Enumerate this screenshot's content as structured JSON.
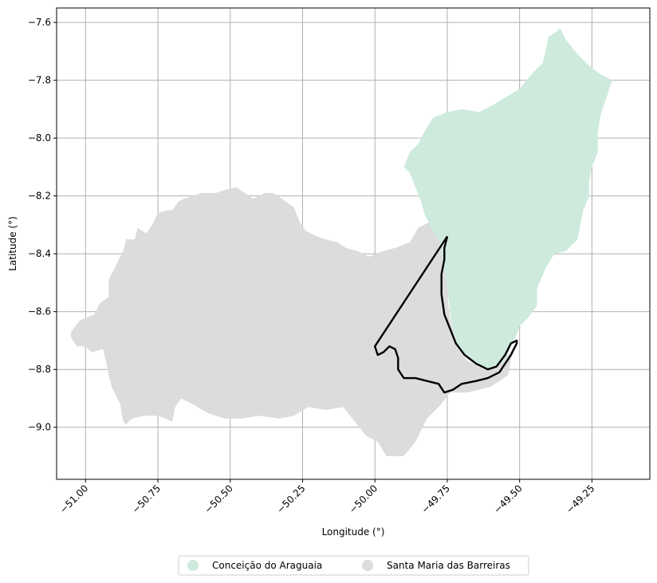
{
  "chart_data": {
    "type": "map",
    "xlabel": "Longitude (°)",
    "ylabel": "Latitude (°)",
    "xlim": [
      -51.1,
      -49.05
    ],
    "ylim": [
      -9.18,
      -7.55
    ],
    "grid": true,
    "x_ticks": [
      {
        "value": -51.0,
        "label": "−51.00"
      },
      {
        "value": -50.75,
        "label": "−50.75"
      },
      {
        "value": -50.5,
        "label": "−50.50"
      },
      {
        "value": -50.25,
        "label": "−50.25"
      },
      {
        "value": -50.0,
        "label": "−50.00"
      },
      {
        "value": -49.75,
        "label": "−49.75"
      },
      {
        "value": -49.5,
        "label": "−49.50"
      },
      {
        "value": -49.25,
        "label": "−49.25"
      }
    ],
    "y_ticks": [
      {
        "value": -7.6,
        "label": "−7.6"
      },
      {
        "value": -7.8,
        "label": "−7.8"
      },
      {
        "value": -8.0,
        "label": "−8.0"
      },
      {
        "value": -8.2,
        "label": "−8.2"
      },
      {
        "value": -8.4,
        "label": "−8.4"
      },
      {
        "value": -8.6,
        "label": "−8.6"
      },
      {
        "value": -8.8,
        "label": "−8.8"
      },
      {
        "value": -9.0,
        "label": "−9.0"
      }
    ],
    "legend_position": "bottom-center",
    "regions": [
      {
        "name": "Santa Maria das Barreiras",
        "color": "#dcdcdc",
        "coords": [
          [
            -51.05,
            -8.67
          ],
          [
            -51.02,
            -8.63
          ],
          [
            -50.97,
            -8.61
          ],
          [
            -50.95,
            -8.57
          ],
          [
            -50.92,
            -8.55
          ],
          [
            -50.92,
            -8.49
          ],
          [
            -50.89,
            -8.43
          ],
          [
            -50.87,
            -8.39
          ],
          [
            -50.86,
            -8.35
          ],
          [
            -50.83,
            -8.35
          ],
          [
            -50.82,
            -8.31
          ],
          [
            -50.79,
            -8.33
          ],
          [
            -50.77,
            -8.3
          ],
          [
            -50.75,
            -8.26
          ],
          [
            -50.72,
            -8.25
          ],
          [
            -50.7,
            -8.25
          ],
          [
            -50.68,
            -8.22
          ],
          [
            -50.66,
            -8.21
          ],
          [
            -50.63,
            -8.2
          ],
          [
            -50.6,
            -8.19
          ],
          [
            -50.58,
            -8.19
          ],
          [
            -50.55,
            -8.19
          ],
          [
            -50.52,
            -8.18
          ],
          [
            -50.48,
            -8.17
          ],
          [
            -50.45,
            -8.19
          ],
          [
            -50.42,
            -8.21
          ],
          [
            -50.38,
            -8.19
          ],
          [
            -50.35,
            -8.19
          ],
          [
            -50.32,
            -8.21
          ],
          [
            -50.28,
            -8.24
          ],
          [
            -50.26,
            -8.29
          ],
          [
            -50.24,
            -8.32
          ],
          [
            -50.2,
            -8.34
          ],
          [
            -50.17,
            -8.35
          ],
          [
            -50.13,
            -8.36
          ],
          [
            -50.1,
            -8.38
          ],
          [
            -50.06,
            -8.39
          ],
          [
            -50.02,
            -8.41
          ],
          [
            -49.97,
            -8.39
          ],
          [
            -49.93,
            -8.38
          ],
          [
            -49.88,
            -8.36
          ],
          [
            -49.85,
            -8.31
          ],
          [
            -49.81,
            -8.29
          ],
          [
            -49.79,
            -8.28
          ],
          [
            -49.74,
            -8.28
          ],
          [
            -49.7,
            -8.28
          ],
          [
            -49.67,
            -8.28
          ],
          [
            -49.67,
            -8.5
          ],
          [
            -49.72,
            -8.52
          ],
          [
            -49.75,
            -8.55
          ],
          [
            -49.74,
            -8.62
          ],
          [
            -49.72,
            -8.72
          ],
          [
            -49.68,
            -8.77
          ],
          [
            -49.62,
            -8.8
          ],
          [
            -49.58,
            -8.79
          ],
          [
            -49.53,
            -8.74
          ],
          [
            -49.52,
            -8.71
          ],
          [
            -49.54,
            -8.82
          ],
          [
            -49.6,
            -8.86
          ],
          [
            -49.68,
            -8.88
          ],
          [
            -49.74,
            -8.88
          ],
          [
            -49.78,
            -8.93
          ],
          [
            -49.82,
            -8.97
          ],
          [
            -49.86,
            -9.05
          ],
          [
            -49.9,
            -9.1
          ],
          [
            -49.96,
            -9.1
          ],
          [
            -49.99,
            -9.05
          ],
          [
            -50.03,
            -9.03
          ],
          [
            -50.07,
            -8.98
          ],
          [
            -50.11,
            -8.93
          ],
          [
            -50.17,
            -8.94
          ],
          [
            -50.23,
            -8.93
          ],
          [
            -50.28,
            -8.96
          ],
          [
            -50.33,
            -8.97
          ],
          [
            -50.4,
            -8.96
          ],
          [
            -50.46,
            -8.97
          ],
          [
            -50.52,
            -8.97
          ],
          [
            -50.58,
            -8.95
          ],
          [
            -50.63,
            -8.92
          ],
          [
            -50.67,
            -8.9
          ],
          [
            -50.69,
            -8.93
          ],
          [
            -50.7,
            -8.98
          ],
          [
            -50.75,
            -8.96
          ],
          [
            -50.8,
            -8.96
          ],
          [
            -50.84,
            -8.97
          ],
          [
            -50.86,
            -8.99
          ],
          [
            -50.87,
            -8.98
          ],
          [
            -50.88,
            -8.92
          ],
          [
            -50.91,
            -8.86
          ],
          [
            -50.92,
            -8.82
          ],
          [
            -50.93,
            -8.77
          ],
          [
            -50.94,
            -8.73
          ],
          [
            -50.98,
            -8.74
          ],
          [
            -51.0,
            -8.72
          ],
          [
            -51.03,
            -8.72
          ],
          [
            -51.05,
            -8.69
          ]
        ]
      },
      {
        "name": "Conceição do Araguaia",
        "color": "#cdeadd",
        "coords": [
          [
            -49.36,
            -7.62
          ],
          [
            -49.34,
            -7.66
          ],
          [
            -49.3,
            -7.71
          ],
          [
            -49.26,
            -7.75
          ],
          [
            -49.22,
            -7.78
          ],
          [
            -49.18,
            -7.8
          ],
          [
            -49.2,
            -7.86
          ],
          [
            -49.22,
            -7.92
          ],
          [
            -49.23,
            -7.98
          ],
          [
            -49.23,
            -8.05
          ],
          [
            -49.25,
            -8.1
          ],
          [
            -49.26,
            -8.15
          ],
          [
            -49.26,
            -8.2
          ],
          [
            -49.28,
            -8.25
          ],
          [
            -49.29,
            -8.3
          ],
          [
            -49.3,
            -8.35
          ],
          [
            -49.34,
            -8.39
          ],
          [
            -49.38,
            -8.4
          ],
          [
            -49.41,
            -8.45
          ],
          [
            -49.44,
            -8.52
          ],
          [
            -49.44,
            -8.58
          ],
          [
            -49.47,
            -8.62
          ],
          [
            -49.5,
            -8.65
          ],
          [
            -49.51,
            -8.68
          ],
          [
            -49.53,
            -8.72
          ],
          [
            -49.55,
            -8.77
          ],
          [
            -49.6,
            -8.8
          ],
          [
            -49.65,
            -8.78
          ],
          [
            -49.71,
            -8.73
          ],
          [
            -49.73,
            -8.67
          ],
          [
            -49.74,
            -8.6
          ],
          [
            -49.75,
            -8.52
          ],
          [
            -49.76,
            -8.45
          ],
          [
            -49.77,
            -8.39
          ],
          [
            -49.78,
            -8.35
          ],
          [
            -49.81,
            -8.3
          ],
          [
            -49.83,
            -8.26
          ],
          [
            -49.84,
            -8.22
          ],
          [
            -49.86,
            -8.17
          ],
          [
            -49.88,
            -8.12
          ],
          [
            -49.9,
            -8.1
          ],
          [
            -49.88,
            -8.05
          ],
          [
            -49.85,
            -8.02
          ],
          [
            -49.83,
            -7.98
          ],
          [
            -49.8,
            -7.93
          ],
          [
            -49.75,
            -7.91
          ],
          [
            -49.7,
            -7.9
          ],
          [
            -49.64,
            -7.91
          ],
          [
            -49.6,
            -7.89
          ],
          [
            -49.55,
            -7.86
          ],
          [
            -49.5,
            -7.83
          ],
          [
            -49.46,
            -7.78
          ],
          [
            -49.42,
            -7.74
          ],
          [
            -49.41,
            -7.7
          ],
          [
            -49.4,
            -7.65
          ],
          [
            -49.37,
            -7.63
          ]
        ]
      }
    ],
    "outline": {
      "color": "#000000",
      "coords": [
        [
          -49.75,
          -8.34
        ],
        [
          -49.76,
          -8.38
        ],
        [
          -49.76,
          -8.42
        ],
        [
          -49.77,
          -8.47
        ],
        [
          -49.77,
          -8.54
        ],
        [
          -49.76,
          -8.61
        ],
        [
          -49.74,
          -8.66
        ],
        [
          -49.72,
          -8.71
        ],
        [
          -49.69,
          -8.75
        ],
        [
          -49.65,
          -8.78
        ],
        [
          -49.61,
          -8.8
        ],
        [
          -49.58,
          -8.79
        ],
        [
          -49.55,
          -8.75
        ],
        [
          -49.53,
          -8.71
        ],
        [
          -49.51,
          -8.7
        ],
        [
          -49.51,
          -8.71
        ],
        [
          -49.53,
          -8.75
        ],
        [
          -49.55,
          -8.78
        ],
        [
          -49.57,
          -8.81
        ],
        [
          -49.61,
          -8.83
        ],
        [
          -49.65,
          -8.84
        ],
        [
          -49.7,
          -8.85
        ],
        [
          -49.73,
          -8.87
        ],
        [
          -49.76,
          -8.88
        ],
        [
          -49.78,
          -8.85
        ],
        [
          -49.82,
          -8.84
        ],
        [
          -49.86,
          -8.83
        ],
        [
          -49.9,
          -8.83
        ],
        [
          -49.92,
          -8.8
        ],
        [
          -49.92,
          -8.76
        ],
        [
          -49.93,
          -8.73
        ],
        [
          -49.95,
          -8.72
        ],
        [
          -49.97,
          -8.74
        ],
        [
          -49.99,
          -8.75
        ],
        [
          -50.0,
          -8.72
        ],
        [
          -49.75,
          -8.34
        ]
      ]
    },
    "legend": [
      {
        "label": "Conceição do Araguaia",
        "color": "#cdeadd"
      },
      {
        "label": "Santa Maria das Barreiras",
        "color": "#dcdcdc"
      }
    ]
  }
}
